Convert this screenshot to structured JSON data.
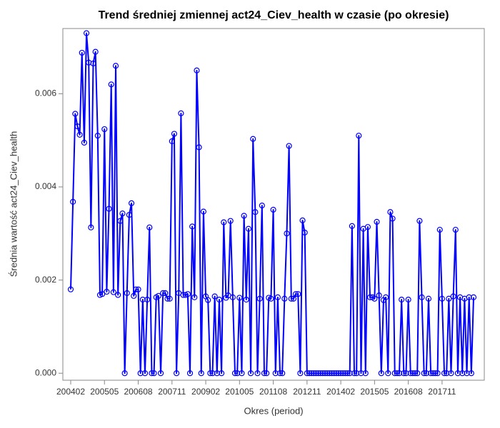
{
  "chart_data": {
    "type": "line",
    "title": "Trend średniej zmiennej act24_Ciev_health w czasie (po okresie)",
    "x_label": "Okres (period)",
    "y_label": "Średnia wartość act24_Ciev_health",
    "categories": [
      "200402",
      null,
      null,
      null,
      null,
      null,
      null,
      null,
      null,
      null,
      null,
      null,
      null,
      null,
      null,
      "200505",
      null,
      null,
      null,
      null,
      null,
      null,
      null,
      null,
      null,
      null,
      null,
      null,
      null,
      null,
      "200608",
      null,
      null,
      null,
      null,
      null,
      null,
      null,
      null,
      null,
      null,
      null,
      null,
      null,
      null,
      "200711",
      null,
      null,
      null,
      null,
      null,
      null,
      null,
      null,
      null,
      null,
      null,
      null,
      null,
      null,
      "200902",
      null,
      null,
      null,
      null,
      null,
      null,
      null,
      null,
      null,
      null,
      null,
      null,
      null,
      null,
      "201005",
      null,
      null,
      null,
      null,
      null,
      null,
      null,
      null,
      null,
      null,
      null,
      null,
      null,
      null,
      "201108",
      null,
      null,
      null,
      null,
      null,
      null,
      null,
      null,
      null,
      null,
      null,
      null,
      null,
      null,
      "201211",
      null,
      null,
      null,
      null,
      null,
      null,
      null,
      null,
      null,
      null,
      null,
      null,
      null,
      null,
      "201402",
      null,
      null,
      null,
      null,
      null,
      null,
      null,
      null,
      null,
      null,
      null,
      null,
      null,
      null,
      "201505",
      null,
      null,
      null,
      null,
      null,
      null,
      null,
      null,
      null,
      null,
      null,
      null,
      null,
      null,
      "201608",
      null,
      null,
      null,
      null,
      null,
      null,
      null,
      null,
      null,
      null,
      null,
      null,
      null,
      null,
      "201711",
      null,
      null,
      null,
      null,
      null,
      null,
      null,
      null,
      null,
      null,
      null,
      null,
      null,
      null
    ],
    "series": [
      {
        "color": "#0000ff",
        "values": [
          0.0018,
          0.00368,
          0.00557,
          0.0053,
          0.00512,
          0.00688,
          0.00495,
          0.0073,
          0.00667,
          0.00313,
          0.00665,
          0.0069,
          0.0051,
          0.00168,
          0.0017,
          0.00524,
          0.00175,
          0.00353,
          0.0062,
          0.00174,
          0.0066,
          0.00168,
          0.00327,
          0.00343,
          0,
          0.00172,
          0.0034,
          0.00365,
          0.00166,
          0.0018,
          0.0018,
          0,
          0.00158,
          0,
          0.00158,
          0.00313,
          0,
          0,
          0.00163,
          0.00166,
          0,
          0.00172,
          0.00172,
          0.0016,
          0.0016,
          0.00498,
          0.00514,
          0,
          0.00172,
          0.00558,
          0.00168,
          0.00168,
          0.0017,
          0,
          0.00315,
          0.00163,
          0.0065,
          0.00485,
          0,
          0.00347,
          0.00165,
          0.00157,
          0,
          0,
          0.00165,
          0,
          0.00158,
          0,
          0.00324,
          0.00162,
          0.00167,
          0.00327,
          0.00163,
          0,
          0,
          0.00162,
          0,
          0.00338,
          0.00158,
          0.0031,
          0,
          0.00503,
          0.00346,
          0,
          0.0016,
          0.0036,
          0,
          0,
          0.00162,
          0.0016,
          0.00351,
          0,
          0.00163,
          0,
          0,
          0.0016,
          0.003,
          0.00488,
          0.0016,
          0.0016,
          0.0017,
          0.0017,
          0,
          0.00328,
          0.00302,
          0,
          0,
          0,
          0,
          0,
          0,
          0,
          0,
          0,
          0,
          0,
          0,
          0,
          0,
          0,
          0,
          0,
          0,
          0,
          0,
          0.00316,
          0,
          0,
          0.0051,
          0,
          0.0031,
          0,
          0.00314,
          0.00163,
          0.00163,
          0.0016,
          0.00325,
          0.00167,
          0,
          0.00157,
          0.00163,
          0,
          0.00346,
          0.00332,
          0,
          0,
          0,
          0.00158,
          0,
          0,
          0.00158,
          0,
          0,
          0,
          0,
          0.00327,
          0.00163,
          0,
          0,
          0.0016,
          0,
          0,
          0,
          0,
          0.00308,
          0.0016,
          0,
          0,
          0.0016,
          0,
          0.00165,
          0.00308,
          0,
          0.00163,
          0,
          0.0016,
          0,
          0.00163,
          0,
          0.00163
        ]
      }
    ],
    "ylim": [
      -0.00015,
      0.0074
    ],
    "yticks": [
      {
        "value": 0,
        "label": "0.000"
      },
      {
        "value": 0.002,
        "label": "0.002"
      },
      {
        "value": 0.004,
        "label": "0.004"
      },
      {
        "value": 0.006,
        "label": "0.006"
      }
    ],
    "grid": false
  }
}
